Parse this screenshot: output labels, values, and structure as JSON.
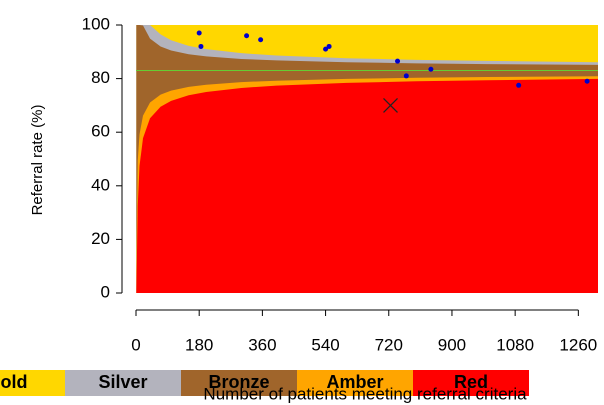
{
  "chart_data": {
    "type": "funnel",
    "x_label": "Number of patients meeting referral criteria",
    "y_label": "Referral rate (%)",
    "xlim": [
      0,
      1316
    ],
    "ylim": [
      0,
      100
    ],
    "xticks": [
      0,
      180,
      360,
      540,
      720,
      900,
      1080,
      1260
    ],
    "yticks": [
      0,
      20,
      40,
      60,
      80,
      100
    ],
    "x": [
      1,
      5,
      10,
      20,
      40,
      70,
      100,
      150,
      200,
      300,
      400,
      600,
      800,
      1000,
      1316
    ],
    "series": [
      {
        "name": "Gold",
        "color": "#FFD700",
        "values": [
          100,
          100,
          100,
          100,
          100,
          100,
          100,
          100,
          100,
          100,
          100,
          100,
          100,
          100,
          100
        ]
      },
      {
        "name": "Silver",
        "color": "#B3B3BD",
        "values": [
          100,
          100,
          100,
          100,
          100,
          96.5,
          94.3,
          92.2,
          91.0,
          89.5,
          88.6,
          87.6,
          87.0,
          86.6,
          86.1
        ]
      },
      {
        "name": "Bronze",
        "color": "#A0652B",
        "values": [
          100,
          100,
          100,
          99.8,
          94.9,
          92.0,
          90.5,
          89.1,
          88.3,
          87.3,
          86.8,
          86.1,
          85.7,
          85.4,
          85.1
        ]
      },
      {
        "name": "Amber",
        "color": "#FFA500",
        "values": [
          7.9,
          49.4,
          59.2,
          66.2,
          71.1,
          74.0,
          75.5,
          76.9,
          77.7,
          78.7,
          79.2,
          79.9,
          80.3,
          80.6,
          80.9
        ]
      },
      {
        "name": "Red",
        "color": "#FF0000",
        "values": [
          0,
          32.6,
          47.4,
          57.8,
          65.2,
          69.5,
          71.7,
          73.8,
          75.0,
          76.5,
          77.4,
          78.4,
          79.0,
          79.4,
          79.9
        ]
      }
    ],
    "reference_line": 83,
    "reference_color": "#66CC33",
    "points": {
      "color": "#0000CC",
      "x": [
        180,
        185,
        315,
        355,
        540,
        550,
        745,
        770,
        840,
        1090,
        1285
      ],
      "values": [
        97,
        92,
        96,
        94.5,
        91,
        92,
        86.5,
        81,
        83.5,
        77.5,
        79
      ]
    },
    "highlight": {
      "x": 725,
      "value": 70,
      "color": "#222222"
    }
  }
}
